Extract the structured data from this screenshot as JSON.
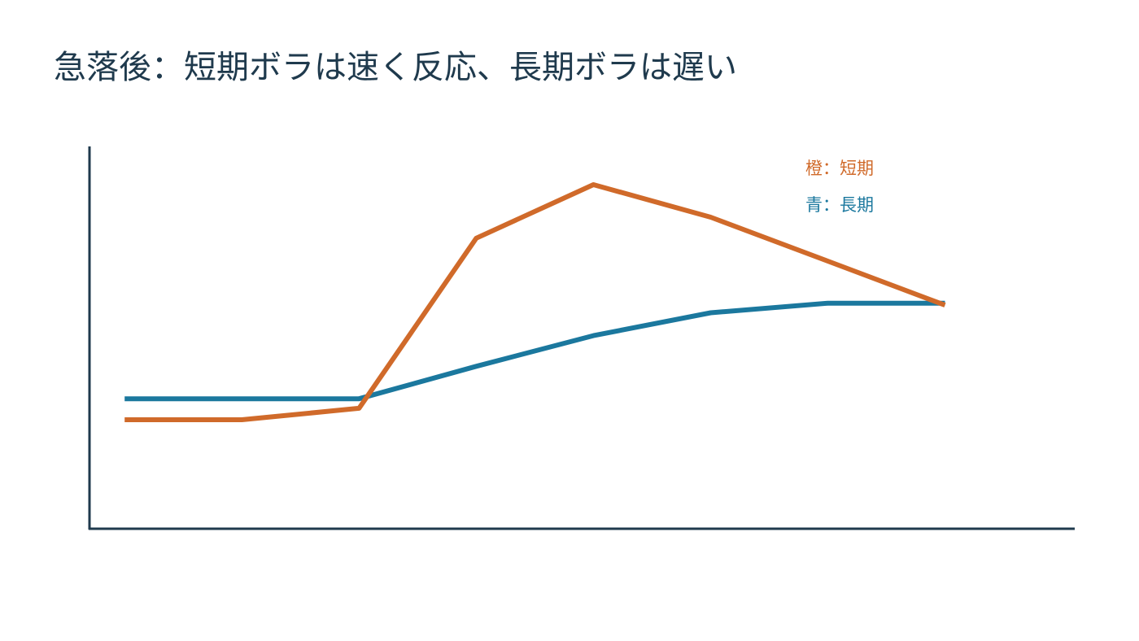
{
  "colors": {
    "short_term": "#d06a2a",
    "long_term": "#1b789e",
    "axis": "#1f3a4d",
    "title": "#1f3a4d"
  },
  "chart_data": {
    "type": "line",
    "title": "急落後：短期ボラは速く反応、長期ボラは遅い",
    "xlabel": "",
    "ylabel": "",
    "x": [
      0,
      1,
      2,
      3,
      4,
      5,
      6,
      7
    ],
    "xlim": [
      -0.3,
      8.1
    ],
    "ylim": [
      0,
      100
    ],
    "grid": false,
    "legend_position": "top-right",
    "legend": {
      "short": "橙：短期",
      "long": "青：長期"
    },
    "series": [
      {
        "key": "short",
        "color": "#d06a2a",
        "values": [
          28.5,
          28.5,
          31.5,
          76,
          90,
          81.5,
          70,
          58.5
        ]
      },
      {
        "key": "long",
        "color": "#1b789e",
        "values": [
          34,
          34,
          34,
          42.5,
          50.5,
          56.5,
          59,
          59
        ]
      }
    ]
  }
}
